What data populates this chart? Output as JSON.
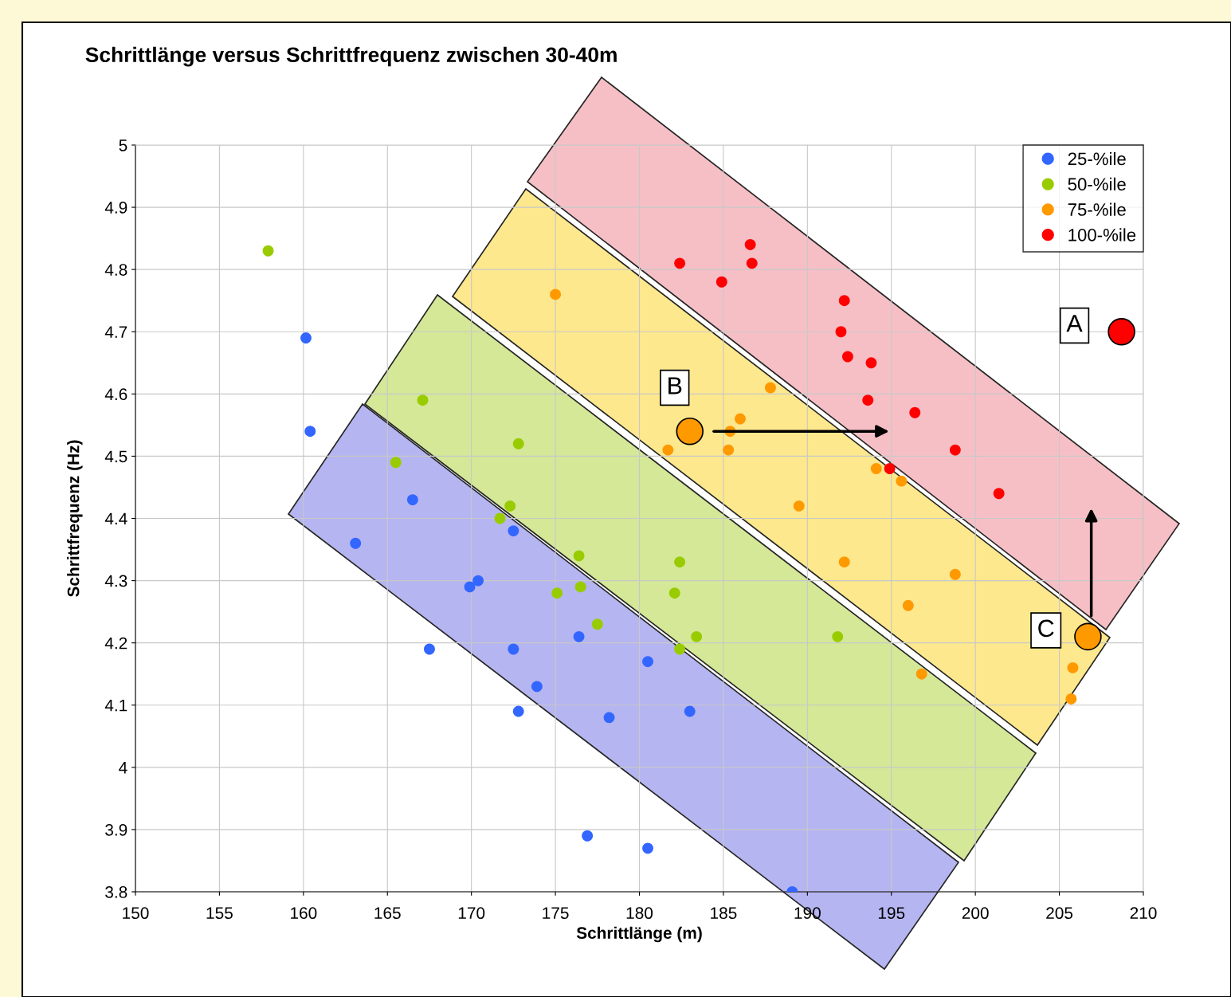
{
  "chart_data": {
    "type": "scatter",
    "title": "Schrittlänge versus Schrittfrequenz zwischen 30-40m",
    "xlabel": "Schrittlänge (m)",
    "ylabel": "Schrittfrequenz (Hz)",
    "xlim": [
      150,
      210
    ],
    "xticks": [
      150,
      155,
      160,
      165,
      170,
      175,
      180,
      185,
      190,
      195,
      200,
      205,
      210
    ],
    "ylim": [
      3.8,
      5
    ],
    "yticks": [
      3.8,
      3.9,
      4,
      4.1,
      4.2,
      4.3,
      4.4,
      4.5,
      4.6,
      4.7,
      4.8,
      4.9,
      5
    ],
    "grid": true,
    "legend": "top right",
    "marker": "circle",
    "series": [
      {
        "name": "25-%ile",
        "color": "#3366ff",
        "x": [
          160.15,
          160.4,
          163.1,
          166.5,
          167.5,
          169.9,
          170.4,
          172.5,
          172.5,
          172.8,
          173.9,
          176.4,
          176.9,
          178.2,
          180.5,
          180.5,
          183.0,
          189.1
        ],
        "values": [
          4.69,
          4.54,
          4.36,
          4.43,
          4.19,
          4.29,
          4.3,
          4.38,
          4.19,
          4.09,
          4.13,
          4.21,
          3.89,
          4.08,
          4.17,
          3.87,
          4.09,
          3.8
        ]
      },
      {
        "name": "50-%ile",
        "color": "#99cc00",
        "x": [
          157.9,
          167.1,
          165.5,
          171.7,
          172.3,
          172.8,
          175.1,
          176.4,
          176.5,
          177.5,
          182.1,
          182.4,
          182.4,
          183.4,
          191.8
        ],
        "values": [
          4.83,
          4.59,
          4.49,
          4.4,
          4.42,
          4.52,
          4.28,
          4.34,
          4.29,
          4.23,
          4.28,
          4.33,
          4.19,
          4.21,
          4.21
        ]
      },
      {
        "name": "75-%ile",
        "color": "#ff9900",
        "x": [
          175.0,
          181.7,
          185.4,
          185.3,
          186.0,
          187.8,
          189.5,
          192.2,
          194.1,
          195.6,
          196.0,
          196.8,
          198.8,
          205.8,
          205.7
        ],
        "values": [
          4.76,
          4.51,
          4.54,
          4.51,
          4.56,
          4.61,
          4.42,
          4.33,
          4.48,
          4.46,
          4.26,
          4.15,
          4.31,
          4.16,
          4.11
        ]
      },
      {
        "name": "100-%ile",
        "color": "#ff0000",
        "x": [
          182.4,
          186.6,
          186.7,
          184.9,
          192.2,
          192.0,
          192.4,
          193.8,
          193.6,
          196.4,
          194.9,
          198.8,
          201.4
        ],
        "values": [
          4.81,
          4.84,
          4.81,
          4.78,
          4.75,
          4.7,
          4.66,
          4.65,
          4.59,
          4.57,
          4.48,
          4.51,
          4.44
        ]
      },
      {
        "color": "#ff9900",
        "x": [
          183.0,
          206.7
        ],
        "values": [
          4.54,
          4.21
        ]
      },
      {
        "color": "#ff0000",
        "x": [
          208.7
        ],
        "values": [
          4.7
        ]
      }
    ],
    "annotations": [
      {
        "text": "A",
        "x": 205.9,
        "y": 4.71
      },
      {
        "text": "B",
        "x": 182.1,
        "y": 4.61
      },
      {
        "text": "C",
        "x": 204.2,
        "y": 4.22
      }
    ]
  }
}
